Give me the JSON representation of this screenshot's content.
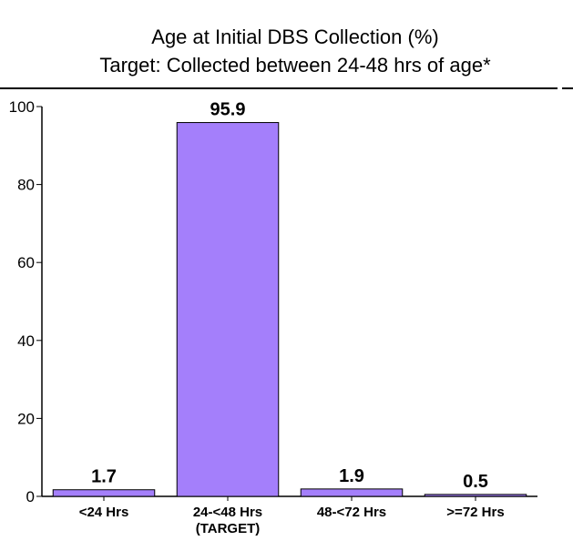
{
  "chart_data": {
    "type": "bar",
    "title": "Age at Initial DBS Collection (%)",
    "subtitle": "Target: Collected between 24-48 hrs of age*",
    "categories": [
      "<24 Hrs",
      "24-<48 Hrs (TARGET)",
      "48-<72 Hrs",
      ">=72 Hrs"
    ],
    "category_lines": [
      [
        "<24 Hrs"
      ],
      [
        "24-<48 Hrs",
        "(TARGET)"
      ],
      [
        "48-<72 Hrs"
      ],
      [
        ">=72 Hrs"
      ]
    ],
    "values": [
      1.7,
      95.9,
      1.9,
      0.5
    ],
    "value_labels": [
      "1.7",
      "95.9",
      "1.9",
      "0.5"
    ],
    "ylim": [
      0,
      100
    ],
    "yticks": [
      0,
      20,
      40,
      60,
      80,
      100
    ],
    "grid": false,
    "colors": {
      "bar": "#a47ffb",
      "bar_stroke": "#000000",
      "axis": "#000000"
    }
  }
}
